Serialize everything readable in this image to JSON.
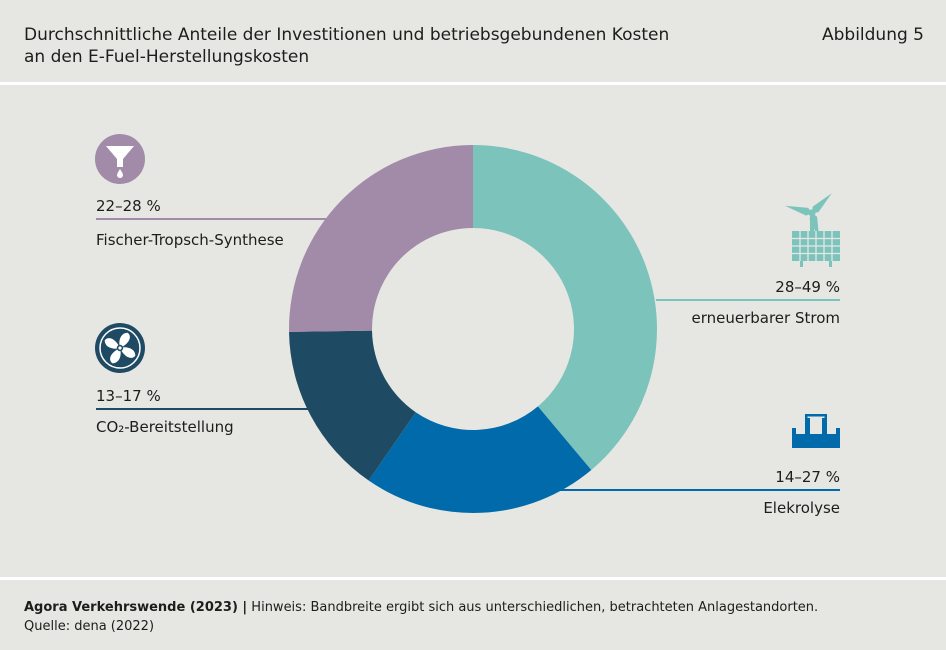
{
  "header": {
    "title_line1": "Durchschnittliche Anteile der Investitionen und betriebsgebundenen Kosten",
    "title_line2": "an den E-Fuel-Herstellungskosten",
    "figure_label": "Abbildung 5"
  },
  "footer": {
    "source_org": "Agora Verkehrswende (2023) |",
    "note": " Hinweis: Bandbreite ergibt sich aus unterschiedlichen, betrachteten Anlagestandorten.",
    "source": "Quelle: dena (2022)"
  },
  "colors": {
    "background": "#e6e7e3",
    "strom": "#7cc3bc",
    "elektrolyse": "#006aab",
    "co2": "#1f4a63",
    "fischer": "#a28ba9"
  },
  "chart_data": {
    "type": "pie",
    "style": "donut",
    "title": "Durchschnittliche Anteile der Investitionen und betriebsgebundenen Kosten an den E-Fuel-Herstellungskosten",
    "start": "top",
    "direction": "clockwise",
    "slices": [
      {
        "id": "strom",
        "label": "erneuerbarer Strom",
        "range": "28–49 %",
        "value": 38.5,
        "color": "#7cc3bc",
        "icon": "wind-solar-icon"
      },
      {
        "id": "elektrolyse",
        "label": "Elekrolyse",
        "range": "14–27 %",
        "value": 20.5,
        "color": "#006aab",
        "icon": "electrolysis-icon"
      },
      {
        "id": "co2",
        "label": "CO₂-Bereitstellung",
        "range": "13–17 %",
        "value": 15,
        "color": "#1f4a63",
        "icon": "fan-icon"
      },
      {
        "id": "fischer",
        "label": "Fischer-Tropsch-Synthese",
        "range": "22–28 %",
        "value": 25,
        "color": "#a28ba9",
        "icon": "funnel-icon"
      }
    ]
  }
}
